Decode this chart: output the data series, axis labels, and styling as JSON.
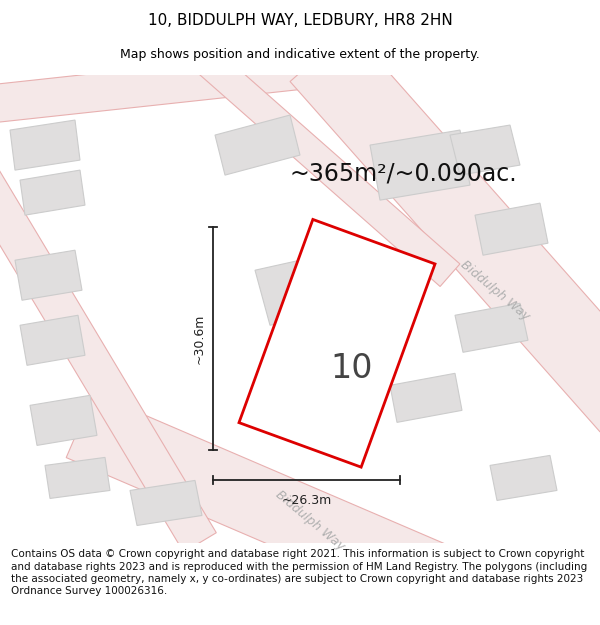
{
  "title": "10, BIDDULPH WAY, LEDBURY, HR8 2HN",
  "subtitle": "Map shows position and indicative extent of the property.",
  "area_text": "~365m²/~0.090ac.",
  "dim_width": "~26.3m",
  "dim_height": "~30.6m",
  "property_label": "10",
  "road_label": "Biddulph Way",
  "footer": "Contains OS data © Crown copyright and database right 2021. This information is subject to Crown copyright and database rights 2023 and is reproduced with the permission of HM Land Registry. The polygons (including the associated geometry, namely x, y co-ordinates) are subject to Crown copyright and database rights 2023 Ordnance Survey 100026316.",
  "map_bg": "#f8f7f7",
  "property_fill": "#ffffff",
  "property_edge": "#dd0000",
  "building_fill": "#e0dede",
  "building_stroke": "#cccccc",
  "road_fill": "#f5e8e8",
  "road_stroke": "#e8b0b0",
  "dim_color": "#222222",
  "label_color": "#444444",
  "road_label_color": "#b0b0b0",
  "title_fontsize": 11,
  "subtitle_fontsize": 9,
  "area_fontsize": 17,
  "property_label_fontsize": 22,
  "footer_fontsize": 7.5
}
